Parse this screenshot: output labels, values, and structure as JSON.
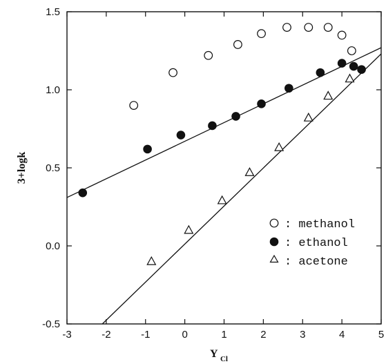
{
  "chart_data": {
    "type": "scatter",
    "title": "",
    "xlabel": "Y",
    "xlabel_subscript": "Cl",
    "ylabel": "3+logk",
    "xlim": [
      -3,
      5
    ],
    "ylim": [
      -0.5,
      1.5
    ],
    "x_ticks": [
      -3,
      -2,
      -1,
      0,
      1,
      2,
      3,
      4,
      5
    ],
    "x_tick_labels": [
      "-3",
      "-2",
      "-1",
      "0",
      "1",
      "2",
      "3",
      "4",
      "5"
    ],
    "y_ticks": [
      -0.5,
      0,
      0.5,
      1,
      1.5
    ],
    "y_tick_labels": [
      "-0.5",
      "0.0",
      "0.5",
      "1.0",
      "1.5"
    ],
    "grid": false,
    "legend_position": "lower-right",
    "series": [
      {
        "name": "methanol",
        "legend_label": ": methanol",
        "marker": "open-circle",
        "points": [
          {
            "x": -1.3,
            "y": 0.9
          },
          {
            "x": -0.3,
            "y": 1.11
          },
          {
            "x": 0.6,
            "y": 1.22
          },
          {
            "x": 1.35,
            "y": 1.29
          },
          {
            "x": 1.95,
            "y": 1.36
          },
          {
            "x": 2.6,
            "y": 1.4
          },
          {
            "x": 3.15,
            "y": 1.4
          },
          {
            "x": 3.65,
            "y": 1.4
          },
          {
            "x": 4.0,
            "y": 1.35
          },
          {
            "x": 4.25,
            "y": 1.25
          }
        ]
      },
      {
        "name": "ethanol",
        "legend_label": ": ethanol",
        "marker": "filled-circle",
        "points": [
          {
            "x": -2.6,
            "y": 0.34
          },
          {
            "x": -0.95,
            "y": 0.62
          },
          {
            "x": -0.1,
            "y": 0.71
          },
          {
            "x": 0.7,
            "y": 0.77
          },
          {
            "x": 1.3,
            "y": 0.83
          },
          {
            "x": 1.95,
            "y": 0.91
          },
          {
            "x": 2.65,
            "y": 1.01
          },
          {
            "x": 3.45,
            "y": 1.11
          },
          {
            "x": 4.0,
            "y": 1.17
          },
          {
            "x": 4.3,
            "y": 1.15
          },
          {
            "x": 4.5,
            "y": 1.13
          }
        ],
        "fit_line": {
          "x": [
            -3,
            5
          ],
          "y": [
            0.31,
            1.27
          ]
        }
      },
      {
        "name": "acetone",
        "legend_label": ": acetone",
        "marker": "open-triangle",
        "points": [
          {
            "x": -0.85,
            "y": -0.1
          },
          {
            "x": 0.1,
            "y": 0.1
          },
          {
            "x": 0.95,
            "y": 0.29
          },
          {
            "x": 1.65,
            "y": 0.47
          },
          {
            "x": 2.4,
            "y": 0.63
          },
          {
            "x": 3.15,
            "y": 0.82
          },
          {
            "x": 3.65,
            "y": 0.96
          },
          {
            "x": 4.2,
            "y": 1.07
          }
        ],
        "fit_line": {
          "x": [
            -2.1,
            5
          ],
          "y": [
            -0.5,
            1.23
          ]
        }
      }
    ]
  }
}
